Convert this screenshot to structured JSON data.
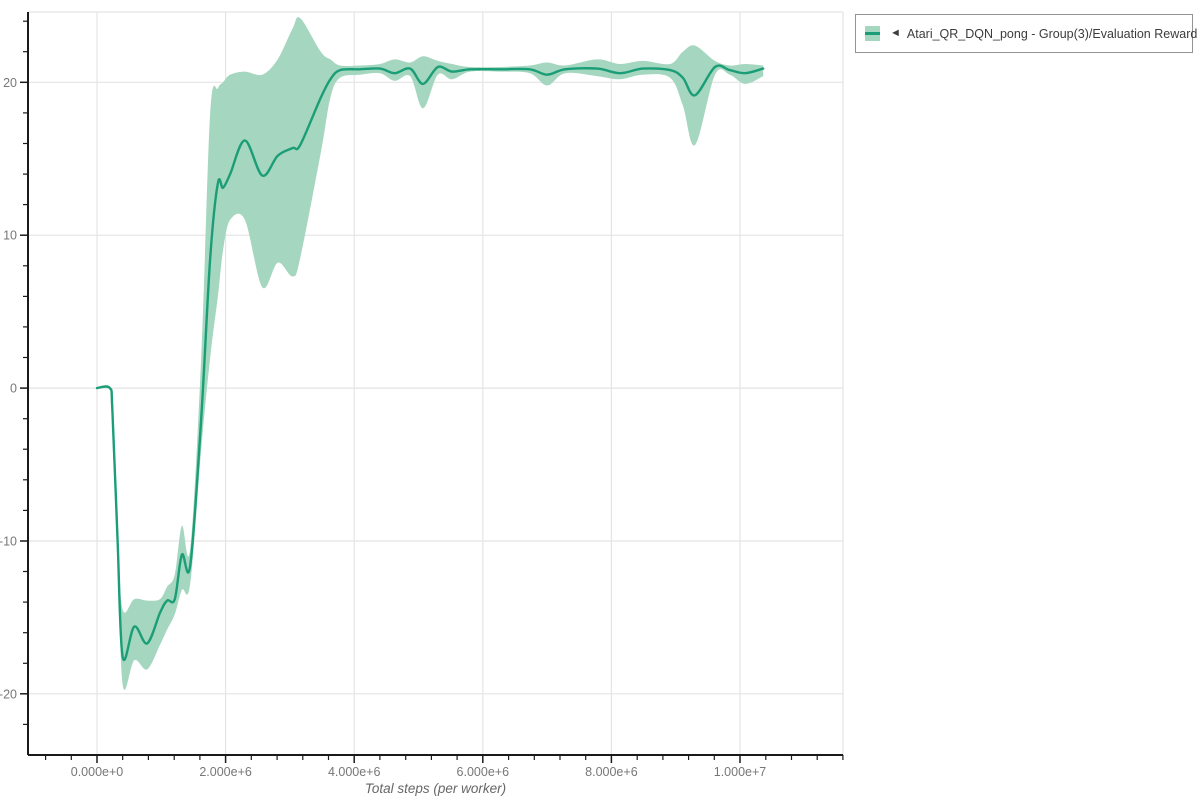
{
  "legend": {
    "toggle_icon": "◄",
    "label": "Atari_QR_DQN_pong - Group(3)/Evaluation Reward",
    "border_color": "#949494",
    "text_color": "#3c3c3c"
  },
  "colors": {
    "line": "#1b9e77",
    "band": "#a5d6bf",
    "grid": "#e4e4e4",
    "axis": "#1a1a1a",
    "tick_text": "#777777",
    "axis_title_text": "#666666"
  },
  "chart_data": {
    "type": "line",
    "title": "",
    "xlabel": "Total steps (per worker)",
    "ylabel": "",
    "grid": true,
    "legend_position": "top-right-outside",
    "x_multiplier": 1000000,
    "xlim": [
      -1.073,
      11.601
    ],
    "ylim": [
      -24,
      24.6
    ],
    "x_ticks": {
      "major": [
        {
          "v": 0,
          "label": "0.000e+0"
        },
        {
          "v": 2,
          "label": "2.000e+6"
        },
        {
          "v": 4,
          "label": "4.000e+6"
        },
        {
          "v": 6,
          "label": "6.000e+6"
        },
        {
          "v": 8,
          "label": "8.000e+6"
        },
        {
          "v": 10,
          "label": "1.000e+7"
        }
      ],
      "minor_range": [
        -0.8,
        11.6
      ],
      "minor_step": 0.4
    },
    "y_ticks": {
      "major": [
        {
          "v": -20,
          "label": "-20"
        },
        {
          "v": -10,
          "label": "-10"
        },
        {
          "v": 0,
          "label": "0"
        },
        {
          "v": 10,
          "label": "10"
        },
        {
          "v": 20,
          "label": "20"
        }
      ],
      "minor_range": [
        -22,
        24
      ],
      "minor_step": 2
    },
    "series": [
      {
        "name": "Atari_QR_DQN_pong - Group(3)/Evaluation Reward",
        "color": "#1b9e77",
        "band_color": "#a5d6bf",
        "x": [
          0.0,
          0.2,
          0.24,
          0.32,
          0.4,
          0.58,
          0.78,
          0.98,
          1.09,
          1.21,
          1.32,
          1.45,
          1.62,
          1.76,
          1.88,
          1.96,
          2.07,
          2.3,
          2.57,
          2.81,
          3.04,
          3.16,
          3.48,
          3.63,
          3.78,
          4.09,
          4.4,
          4.63,
          4.87,
          5.07,
          5.3,
          5.52,
          5.8,
          6.27,
          6.73,
          7.0,
          7.28,
          7.78,
          8.13,
          8.49,
          8.91,
          9.11,
          9.3,
          9.61,
          9.84,
          10.08,
          10.36
        ],
        "mean": [
          0,
          0,
          -1.5,
          -10,
          -17.6,
          -15.6,
          -16.7,
          -14.7,
          -13.9,
          -13.8,
          -10.9,
          -11.6,
          -2.0,
          8.5,
          13.4,
          13.1,
          14.0,
          16.2,
          13.9,
          15.2,
          15.7,
          15.9,
          19.0,
          20.2,
          20.8,
          20.85,
          20.9,
          20.6,
          20.9,
          19.9,
          21.0,
          20.7,
          20.85,
          20.85,
          20.85,
          20.5,
          20.85,
          20.9,
          20.6,
          20.9,
          20.8,
          20.3,
          19.15,
          21.0,
          20.8,
          20.6,
          20.9
        ],
        "lo": [
          0,
          0,
          -1.5,
          -10.2,
          -19.4,
          -17.8,
          -18.4,
          -16.8,
          -15.8,
          -14.8,
          -13.2,
          -12.8,
          -4.0,
          2.0,
          6.0,
          9.0,
          11.0,
          11.0,
          6.6,
          8.2,
          7.3,
          8.5,
          15.4,
          19.0,
          20.3,
          20.5,
          20.6,
          20.1,
          20.4,
          18.3,
          20.5,
          20.2,
          20.7,
          20.7,
          20.6,
          19.8,
          20.6,
          20.4,
          20.2,
          20.5,
          20.3,
          18.5,
          15.9,
          20.5,
          20.5,
          19.9,
          20.4
        ],
        "hi": [
          0,
          0,
          -1.5,
          -9.8,
          -14.5,
          -13.8,
          -13.9,
          -13.8,
          -13.0,
          -12.2,
          -9.0,
          -10.5,
          2.0,
          18.0,
          19.6,
          20.0,
          20.5,
          20.7,
          20.5,
          21.5,
          23.5,
          24.2,
          22.0,
          21.5,
          21.1,
          21.1,
          21.2,
          21.5,
          21.3,
          21.7,
          21.4,
          21.2,
          21.0,
          21.0,
          21.1,
          21.3,
          21.1,
          21.5,
          21.2,
          21.4,
          21.2,
          22.0,
          22.4,
          21.4,
          21.1,
          21.2,
          21.1
        ]
      }
    ]
  }
}
